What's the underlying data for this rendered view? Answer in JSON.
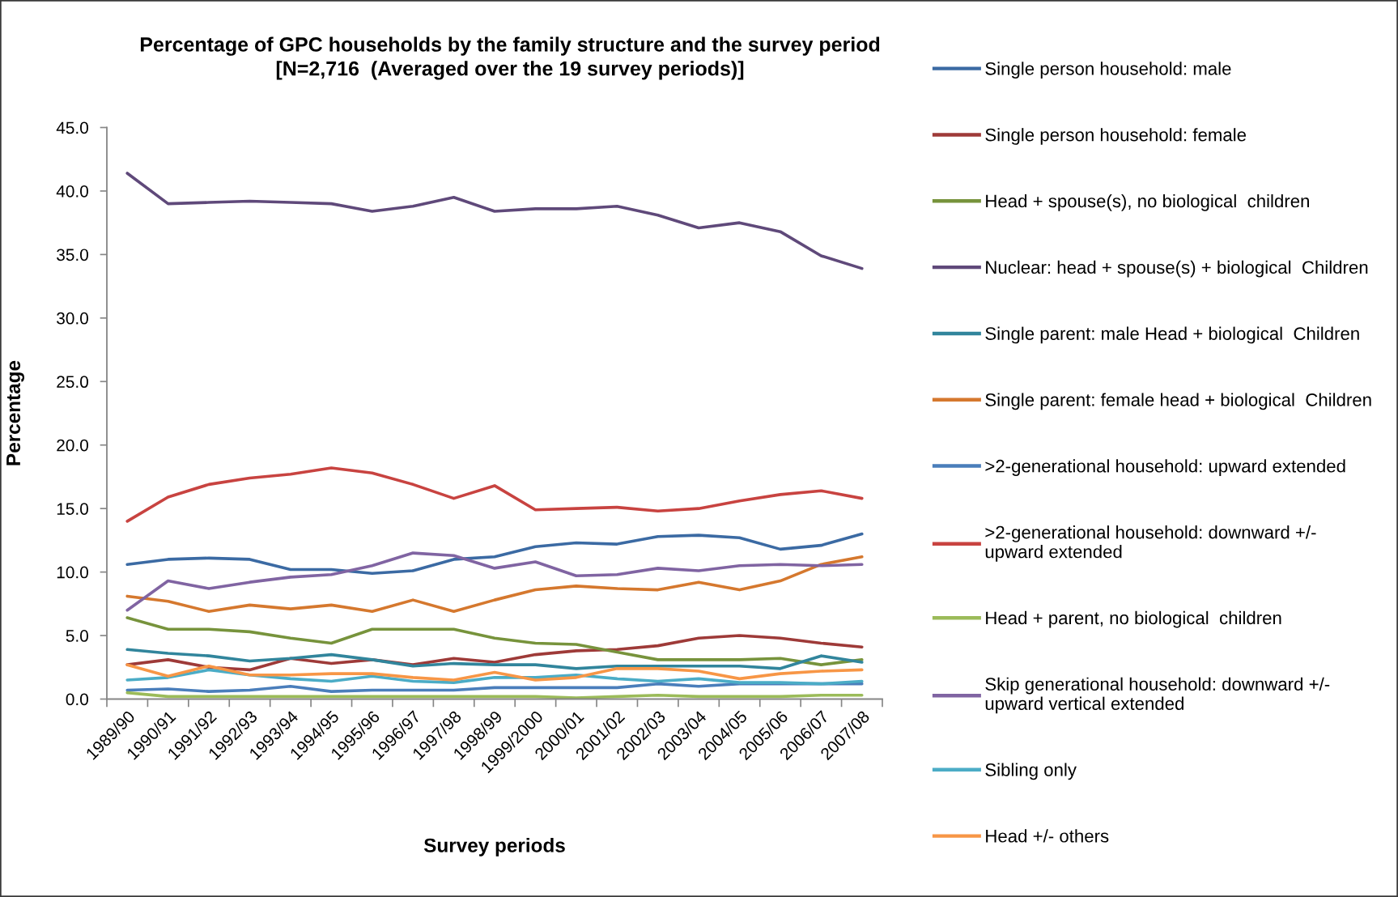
{
  "chart_data": {
    "type": "line",
    "title": "Percentage of GPC households by the family structure and the survey period\n[N=2,716  (Averaged over the 19 survey periods)]",
    "xlabel": "Survey periods",
    "ylabel": "Percentage",
    "categories": [
      "1989/90",
      "1990/91",
      "1991/92",
      "1992/93",
      "1993/94",
      "1994/95",
      "1995/96",
      "1996/97",
      "1997/98",
      "1998/99",
      "1999/2000",
      "2000/01",
      "2001/02",
      "2002/03",
      "2003/04",
      "2004/05",
      "2005/06",
      "2006/07",
      "2007/08"
    ],
    "ylim": [
      0,
      45
    ],
    "yticks": [
      {
        "value": 0,
        "label": "0.0"
      },
      {
        "value": 5,
        "label": "5.0"
      },
      {
        "value": 10,
        "label": "10.0"
      },
      {
        "value": 15,
        "label": "15.0"
      },
      {
        "value": 20,
        "label": "20.0"
      },
      {
        "value": 25,
        "label": "25.0"
      },
      {
        "value": 30,
        "label": "30.0"
      },
      {
        "value": 35,
        "label": "35.0"
      },
      {
        "value": 40,
        "label": "40.0"
      },
      {
        "value": 45,
        "label": "45.0"
      }
    ],
    "legend": "right",
    "series": [
      {
        "name": "Single person household: male",
        "color": "#3b6aa3",
        "values": [
          10.6,
          11.0,
          11.1,
          11.0,
          10.2,
          10.2,
          9.9,
          10.1,
          11.0,
          11.2,
          12.0,
          12.3,
          12.2,
          12.8,
          12.9,
          12.7,
          11.8,
          12.1,
          13.0
        ]
      },
      {
        "name": "Single person household: female",
        "color": "#9e3a38",
        "values": [
          2.7,
          3.1,
          2.5,
          2.3,
          3.2,
          2.8,
          3.1,
          2.7,
          3.2,
          2.9,
          3.5,
          3.8,
          3.9,
          4.2,
          4.8,
          5.0,
          4.8,
          4.4,
          4.1
        ]
      },
      {
        "name": "Head + spouse(s), no biological  children",
        "color": "#77933c",
        "values": [
          6.4,
          5.5,
          5.5,
          5.3,
          4.8,
          4.4,
          5.5,
          5.5,
          5.5,
          4.8,
          4.4,
          4.3,
          3.7,
          3.1,
          3.1,
          3.1,
          3.2,
          2.7,
          3.1
        ]
      },
      {
        "name": "Nuclear: head + spouse(s) + biological  Children",
        "color": "#5f497a",
        "values": [
          41.4,
          39.0,
          39.1,
          39.2,
          39.1,
          39.0,
          38.4,
          38.8,
          39.5,
          38.4,
          38.6,
          38.6,
          38.8,
          38.1,
          37.1,
          37.5,
          36.8,
          34.9,
          33.9
        ]
      },
      {
        "name": "Single parent: male Head + biological  Children",
        "color": "#31859c",
        "values": [
          3.9,
          3.6,
          3.4,
          3.0,
          3.2,
          3.5,
          3.1,
          2.6,
          2.8,
          2.7,
          2.7,
          2.4,
          2.6,
          2.6,
          2.6,
          2.6,
          2.4,
          3.4,
          2.9
        ]
      },
      {
        "name": "Single parent: female head + biological  Children",
        "color": "#d5782e",
        "values": [
          8.1,
          7.7,
          6.9,
          7.4,
          7.1,
          7.4,
          6.9,
          7.8,
          6.9,
          7.8,
          8.6,
          8.9,
          8.7,
          8.6,
          9.2,
          8.6,
          9.3,
          10.6,
          11.2
        ]
      },
      {
        "name": ">2-generational household: upward extended",
        "color": "#4a7ebb",
        "values": [
          0.7,
          0.8,
          0.6,
          0.7,
          1.0,
          0.6,
          0.7,
          0.7,
          0.7,
          0.9,
          0.9,
          0.9,
          0.9,
          1.2,
          1.0,
          1.2,
          1.2,
          1.2,
          1.2
        ]
      },
      {
        "name": ">2-generational household: downward +/-\nupward extended",
        "color": "#c84340",
        "values": [
          14.0,
          15.9,
          16.9,
          17.4,
          17.7,
          18.2,
          17.8,
          16.9,
          15.8,
          16.8,
          14.9,
          15.0,
          15.1,
          14.8,
          15.0,
          15.6,
          16.1,
          16.4,
          15.8
        ]
      },
      {
        "name": "Head + parent, no biological  children",
        "color": "#9bbb59",
        "values": [
          0.5,
          0.2,
          0.2,
          0.2,
          0.2,
          0.2,
          0.2,
          0.2,
          0.2,
          0.2,
          0.2,
          0.1,
          0.2,
          0.3,
          0.2,
          0.2,
          0.2,
          0.3,
          0.3
        ]
      },
      {
        "name": "Skip generational household: downward +/-\nupward vertical extended",
        "color": "#8064a2",
        "values": [
          7.0,
          9.3,
          8.7,
          9.2,
          9.6,
          9.8,
          10.5,
          11.5,
          11.3,
          10.3,
          10.8,
          9.7,
          9.8,
          10.3,
          10.1,
          10.5,
          10.6,
          10.5,
          10.6
        ]
      },
      {
        "name": "Sibling only",
        "color": "#4bacc6",
        "values": [
          1.5,
          1.7,
          2.3,
          1.9,
          1.6,
          1.4,
          1.8,
          1.4,
          1.3,
          1.7,
          1.7,
          1.9,
          1.6,
          1.4,
          1.6,
          1.3,
          1.3,
          1.2,
          1.4
        ]
      },
      {
        "name": "Head +/- others",
        "color": "#f79646",
        "values": [
          2.7,
          1.8,
          2.6,
          1.9,
          1.9,
          2.0,
          2.0,
          1.7,
          1.5,
          2.1,
          1.5,
          1.7,
          2.4,
          2.4,
          2.2,
          1.6,
          2.0,
          2.2,
          2.3
        ]
      }
    ]
  }
}
